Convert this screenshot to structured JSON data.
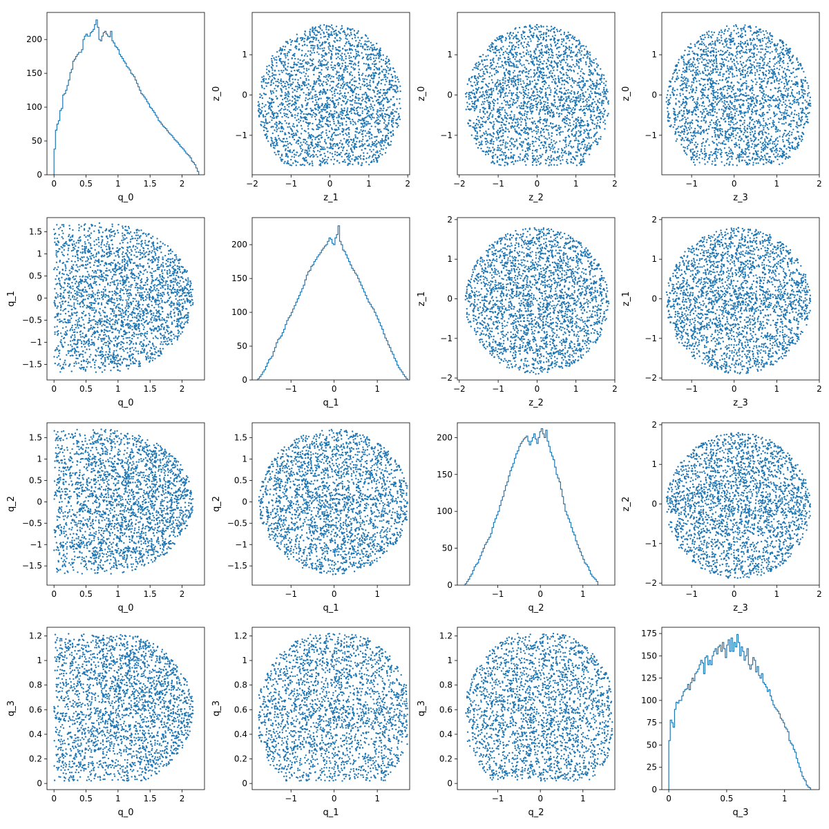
{
  "style": {
    "color": "#1f77b4",
    "text": "#000000"
  },
  "chart_data": [
    {
      "type": "histogram",
      "xlabel": "q_0",
      "ylabel": "",
      "xlim": [
        -0.11,
        2.35
      ],
      "ylim": [
        0,
        240
      ],
      "xticks": [
        0,
        0.5,
        1,
        1.5,
        2
      ],
      "yticks": [
        0,
        50,
        100,
        150,
        200
      ],
      "bins": {
        "x0": 0,
        "dx": 0.0226,
        "counts": [
          38,
          66,
          75,
          80,
          95,
          98,
          118,
          120,
          125,
          132,
          140,
          151,
          156,
          168,
          171,
          175,
          178,
          181,
          181,
          185,
          200,
          205,
          208,
          205,
          205,
          210,
          212,
          215,
          222,
          229,
          218,
          200,
          198,
          205,
          210,
          212,
          208,
          205,
          204,
          212,
          198,
          195,
          190,
          188,
          185,
          178,
          175,
          172,
          168,
          165,
          160,
          158,
          155,
          150,
          148,
          145,
          140,
          135,
          130,
          125,
          120,
          118,
          115,
          112,
          108,
          105,
          100,
          98,
          95,
          92,
          88,
          85,
          80,
          78,
          75,
          72,
          70,
          68,
          65,
          62,
          60,
          58,
          55,
          52,
          50,
          48,
          45,
          42,
          40,
          38,
          35,
          32,
          30,
          28,
          25,
          20,
          18,
          15,
          10,
          5
        ]
      }
    },
    {
      "type": "scatter",
      "xvar": "z_1",
      "yvar": "z_0",
      "xlabel": "z_1",
      "ylabel": "z_0",
      "xlim": [
        -2.0,
        2.05
      ],
      "ylim": [
        -1.98,
        2.05
      ],
      "xticks": [
        -2,
        -1,
        0,
        1,
        2
      ],
      "yticks": [
        -1,
        0,
        1
      ],
      "center": [
        0,
        -0.2
      ],
      "radius": [
        1.85,
        1.95
      ],
      "clip": [
        null,
        null,
        -1.75,
        null
      ],
      "weight": "center"
    },
    {
      "type": "scatter",
      "xvar": "z_2",
      "yvar": "z_0",
      "xlabel": "z_2",
      "ylabel": "z_0",
      "xlim": [
        -2.05,
        2.0
      ],
      "ylim": [
        -1.98,
        2.05
      ],
      "xticks": [
        -2,
        -1,
        0,
        1,
        2
      ],
      "yticks": [
        -1,
        0,
        1
      ],
      "center": [
        0,
        -0.2
      ],
      "radius": [
        1.85,
        1.95
      ],
      "clip": [
        null,
        null,
        -1.75,
        null
      ],
      "weight": "center"
    },
    {
      "type": "scatter",
      "xvar": "z_3",
      "yvar": "z_0",
      "xlabel": "z_3",
      "ylabel": "z_0",
      "xlim": [
        -1.7,
        2.0
      ],
      "ylim": [
        -1.98,
        2.05
      ],
      "xticks": [
        -1,
        0,
        1,
        2
      ],
      "yticks": [
        -1,
        0,
        1
      ],
      "center": [
        0.1,
        -0.2
      ],
      "radius": [
        1.7,
        1.95
      ],
      "clip": [
        -1.6,
        1.85,
        -1.75,
        null
      ],
      "weight": "center"
    },
    {
      "type": "scatter",
      "xvar": "q_0",
      "yvar": "q_1",
      "xlabel": "q_0",
      "ylabel": "q_1",
      "xlim": [
        -0.11,
        2.35
      ],
      "ylim": [
        -1.85,
        1.82
      ],
      "xticks": [
        0,
        0.5,
        1,
        1.5,
        2
      ],
      "yticks": [
        -1.5,
        -1,
        -0.5,
        0,
        0.5,
        1,
        1.5
      ],
      "center": [
        0.7,
        0
      ],
      "radius": [
        1.5,
        1.7
      ],
      "clip": [
        0,
        2.2,
        null,
        null
      ],
      "weight": "left"
    },
    {
      "type": "histogram",
      "xlabel": "q_1",
      "ylabel": "",
      "xlim": [
        -1.9,
        1.75
      ],
      "ylim": [
        0,
        240
      ],
      "xticks": [
        -1,
        0,
        1
      ],
      "yticks": [
        0,
        50,
        100,
        150,
        200
      ],
      "bins": {
        "x0": -1.8,
        "dx": 0.035,
        "counts": [
          0,
          2,
          5,
          8,
          12,
          15,
          20,
          25,
          30,
          32,
          35,
          42,
          48,
          55,
          60,
          62,
          65,
          70,
          75,
          82,
          88,
          92,
          95,
          100,
          105,
          110,
          115,
          120,
          125,
          130,
          135,
          140,
          148,
          155,
          160,
          162,
          168,
          170,
          175,
          178,
          182,
          185,
          188,
          192,
          195,
          198,
          200,
          205,
          210,
          208,
          202,
          200,
          210,
          215,
          228,
          205,
          200,
          192,
          190,
          185,
          180,
          175,
          170,
          165,
          162,
          158,
          155,
          150,
          145,
          140,
          135,
          130,
          125,
          120,
          115,
          112,
          108,
          105,
          100,
          95,
          90,
          85,
          80,
          75,
          68,
          62,
          58,
          52,
          48,
          42,
          38,
          32,
          28,
          22,
          18,
          15,
          12,
          8,
          5,
          2
        ]
      }
    },
    {
      "type": "scatter",
      "xvar": "z_2",
      "yvar": "z_1",
      "xlabel": "z_2",
      "ylabel": "z_1",
      "xlim": [
        -2.05,
        2.0
      ],
      "ylim": [
        -2.05,
        2.05
      ],
      "xticks": [
        -2,
        -1,
        0,
        1,
        2
      ],
      "yticks": [
        -2,
        -1,
        0,
        1,
        2
      ],
      "center": [
        0,
        -0.05
      ],
      "radius": [
        1.85,
        1.85
      ],
      "clip": [
        null,
        null,
        null,
        null
      ],
      "weight": "center"
    },
    {
      "type": "scatter",
      "xvar": "z_3",
      "yvar": "z_1",
      "xlabel": "z_3",
      "ylabel": "z_1",
      "xlim": [
        -1.7,
        2.0
      ],
      "ylim": [
        -2.05,
        2.05
      ],
      "xticks": [
        -1,
        0,
        1,
        2
      ],
      "yticks": [
        -2,
        -1,
        0,
        1,
        2
      ],
      "center": [
        0.1,
        -0.05
      ],
      "radius": [
        1.7,
        1.85
      ],
      "clip": [
        -1.6,
        1.85,
        null,
        null
      ],
      "weight": "center"
    },
    {
      "type": "scatter",
      "xvar": "q_0",
      "yvar": "q_2",
      "xlabel": "q_0",
      "ylabel": "q_2",
      "xlim": [
        -0.11,
        2.35
      ],
      "ylim": [
        -1.95,
        1.85
      ],
      "xticks": [
        0,
        0.5,
        1,
        1.5,
        2
      ],
      "yticks": [
        -1.5,
        -1,
        -0.5,
        0,
        0.5,
        1,
        1.5
      ],
      "center": [
        0.7,
        0
      ],
      "radius": [
        1.5,
        1.7
      ],
      "clip": [
        0,
        2.2,
        null,
        null
      ],
      "weight": "left"
    },
    {
      "type": "scatter",
      "xvar": "q_1",
      "yvar": "q_2",
      "xlabel": "q_1",
      "ylabel": "q_2",
      "xlim": [
        -1.9,
        1.75
      ],
      "ylim": [
        -1.95,
        1.85
      ],
      "xticks": [
        -1,
        0,
        1
      ],
      "yticks": [
        -1.5,
        -1,
        -0.5,
        0,
        0.5,
        1,
        1.5
      ],
      "center": [
        0,
        0
      ],
      "radius": [
        1.75,
        1.7
      ],
      "clip": [
        -1.75,
        1.7,
        null,
        null
      ],
      "weight": "center"
    },
    {
      "type": "histogram",
      "xlabel": "q_2",
      "ylabel": "",
      "xlim": [
        -1.95,
        1.75
      ],
      "ylim": [
        0,
        220
      ],
      "xticks": [
        -1,
        0,
        1
      ],
      "yticks": [
        0,
        50,
        100,
        150,
        200
      ],
      "bins": {
        "x0": -1.8,
        "dx": 0.035,
        "counts": [
          0,
          2,
          5,
          8,
          12,
          15,
          20,
          25,
          28,
          30,
          35,
          40,
          45,
          50,
          55,
          58,
          62,
          65,
          70,
          78,
          85,
          90,
          95,
          100,
          108,
          115,
          120,
          128,
          135,
          140,
          148,
          155,
          160,
          165,
          172,
          178,
          182,
          188,
          192,
          195,
          198,
          200,
          202,
          195,
          190,
          195,
          200,
          205,
          198,
          192,
          200,
          208,
          212,
          205,
          200,
          210,
          195,
          188,
          180,
          175,
          170,
          160,
          150,
          145,
          140,
          130,
          120,
          110,
          100,
          95,
          90,
          85,
          78,
          72,
          68,
          60,
          55,
          50,
          45,
          40,
          35,
          30,
          28,
          25,
          20,
          15,
          12,
          10,
          8,
          5
        ]
      }
    },
    {
      "type": "scatter",
      "xvar": "z_3",
      "yvar": "z_2",
      "xlabel": "z_3",
      "ylabel": "z_2",
      "xlim": [
        -1.7,
        2.0
      ],
      "ylim": [
        -2.05,
        2.05
      ],
      "xticks": [
        -1,
        0,
        1,
        2
      ],
      "yticks": [
        -2,
        -1,
        0,
        1,
        2
      ],
      "center": [
        0.1,
        -0.05
      ],
      "radius": [
        1.7,
        1.85
      ],
      "clip": [
        -1.6,
        1.85,
        null,
        null
      ],
      "weight": "center"
    },
    {
      "type": "scatter",
      "xvar": "q_0",
      "yvar": "q_3",
      "xlabel": "q_0",
      "ylabel": "q_3",
      "xlim": [
        -0.11,
        2.35
      ],
      "ylim": [
        -0.05,
        1.27
      ],
      "xticks": [
        0,
        0.5,
        1,
        1.5,
        2
      ],
      "yticks": [
        0,
        0.2,
        0.4,
        0.6,
        0.8,
        1.0,
        1.2
      ],
      "center": [
        0.7,
        0.6
      ],
      "radius": [
        1.5,
        0.65
      ],
      "clip": [
        0,
        2.2,
        0.02,
        1.22
      ],
      "weight": "left"
    },
    {
      "type": "scatter",
      "xvar": "q_1",
      "yvar": "q_3",
      "xlabel": "q_1",
      "ylabel": "q_3",
      "xlim": [
        -1.9,
        1.75
      ],
      "ylim": [
        -0.05,
        1.27
      ],
      "xticks": [
        -1,
        0,
        1
      ],
      "yticks": [
        0,
        0.2,
        0.4,
        0.6,
        0.8,
        1.0,
        1.2
      ],
      "center": [
        0,
        0.55
      ],
      "radius": [
        1.8,
        0.7
      ],
      "clip": [
        -1.75,
        1.7,
        0.02,
        1.22
      ],
      "weight": "center"
    },
    {
      "type": "scatter",
      "xvar": "q_2",
      "yvar": "q_3",
      "xlabel": "q_2",
      "ylabel": "q_3",
      "xlim": [
        -1.95,
        1.75
      ],
      "ylim": [
        -0.05,
        1.27
      ],
      "xticks": [
        -1,
        0,
        1
      ],
      "yticks": [
        0,
        0.2,
        0.4,
        0.6,
        0.8,
        1.0,
        1.2
      ],
      "center": [
        0,
        0.55
      ],
      "radius": [
        1.8,
        0.7
      ],
      "clip": [
        -1.75,
        1.7,
        0.02,
        1.22
      ],
      "weight": "center"
    },
    {
      "type": "histogram",
      "xlabel": "q_3",
      "ylabel": "",
      "xlim": [
        -0.06,
        1.3
      ],
      "ylim": [
        0,
        182
      ],
      "xticks": [
        0,
        0.5,
        1
      ],
      "yticks": [
        0,
        25,
        50,
        75,
        100,
        125,
        150,
        175
      ],
      "bins": {
        "x0": 0,
        "dx": 0.0125,
        "counts": [
          55,
          78,
          75,
          70,
          90,
          98,
          97,
          100,
          100,
          105,
          110,
          112,
          113,
          118,
          112,
          120,
          125,
          122,
          130,
          132,
          135,
          140,
          145,
          142,
          130,
          148,
          150,
          140,
          145,
          140,
          150,
          155,
          158,
          152,
          160,
          162,
          155,
          165,
          158,
          148,
          162,
          168,
          155,
          170,
          155,
          165,
          160,
          174,
          165,
          150,
          160,
          155,
          145,
          150,
          158,
          140,
          135,
          140,
          148,
          145,
          132,
          138,
          128,
          125,
          130,
          120,
          118,
          115,
          110,
          112,
          105,
          100,
          95,
          92,
          90,
          88,
          85,
          80,
          78,
          75,
          70,
          68,
          65,
          55,
          52,
          50,
          45,
          42,
          35,
          30,
          25,
          20,
          15,
          12,
          10,
          5,
          3,
          2
        ]
      }
    }
  ]
}
